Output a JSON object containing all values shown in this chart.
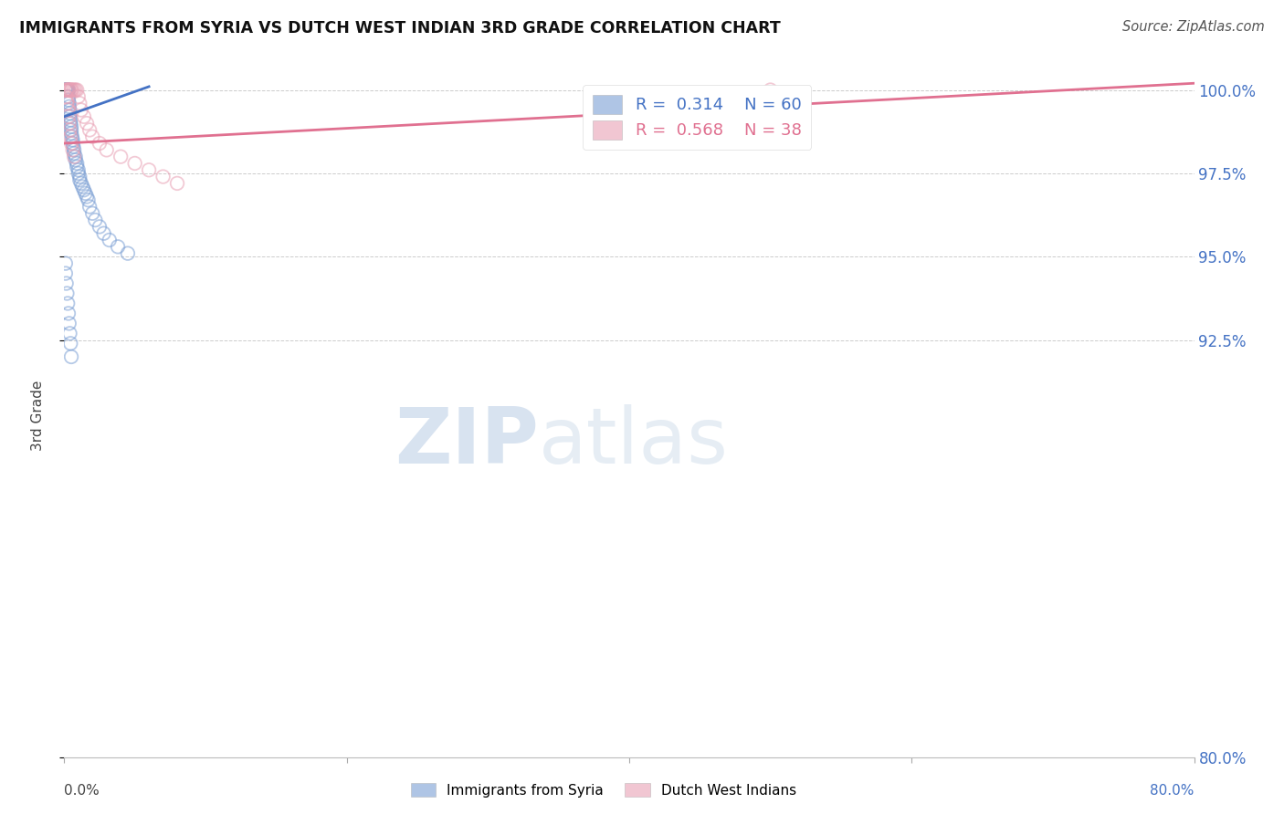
{
  "title": "IMMIGRANTS FROM SYRIA VS DUTCH WEST INDIAN 3RD GRADE CORRELATION CHART",
  "source": "Source: ZipAtlas.com",
  "ylabel": "3rd Grade",
  "ylabel_values": [
    80.0,
    92.5,
    95.0,
    97.5,
    100.0
  ],
  "xlim": [
    0.0,
    80.0
  ],
  "ylim": [
    80.0,
    100.5
  ],
  "legend_blue_R": "0.314",
  "legend_blue_N": "60",
  "legend_pink_R": "0.568",
  "legend_pink_N": "38",
  "blue_color": "#7B9FD4",
  "pink_color": "#E8A0B4",
  "blue_line_color": "#4472C4",
  "pink_line_color": "#E07090",
  "watermark_zip": "ZIP",
  "watermark_atlas": "atlas",
  "blue_scatter_x": [
    0.1,
    0.1,
    0.15,
    0.15,
    0.2,
    0.2,
    0.2,
    0.25,
    0.25,
    0.3,
    0.3,
    0.3,
    0.35,
    0.35,
    0.4,
    0.4,
    0.4,
    0.45,
    0.45,
    0.5,
    0.5,
    0.5,
    0.55,
    0.6,
    0.6,
    0.65,
    0.7,
    0.7,
    0.8,
    0.8,
    0.9,
    0.9,
    1.0,
    1.0,
    1.1,
    1.1,
    1.2,
    1.3,
    1.4,
    1.5,
    1.6,
    1.7,
    1.8,
    2.0,
    2.2,
    2.5,
    2.8,
    3.2,
    3.8,
    4.5,
    0.1,
    0.1,
    0.15,
    0.2,
    0.25,
    0.3,
    0.35,
    0.4,
    0.45,
    0.5
  ],
  "blue_scatter_y": [
    100.0,
    100.0,
    100.0,
    100.0,
    100.0,
    100.0,
    100.0,
    100.0,
    100.0,
    100.0,
    99.8,
    99.7,
    99.6,
    99.5,
    99.4,
    99.3,
    99.2,
    99.1,
    99.0,
    98.9,
    98.8,
    98.7,
    98.6,
    98.5,
    98.4,
    98.3,
    98.2,
    98.1,
    98.0,
    97.9,
    97.8,
    97.7,
    97.6,
    97.5,
    97.4,
    97.3,
    97.2,
    97.1,
    97.0,
    96.9,
    96.8,
    96.7,
    96.5,
    96.3,
    96.1,
    95.9,
    95.7,
    95.5,
    95.3,
    95.1,
    94.8,
    94.5,
    94.2,
    93.9,
    93.6,
    93.3,
    93.0,
    92.7,
    92.4,
    92.0
  ],
  "pink_scatter_x": [
    0.1,
    0.15,
    0.2,
    0.25,
    0.3,
    0.35,
    0.4,
    0.5,
    0.5,
    0.6,
    0.7,
    0.8,
    0.9,
    1.0,
    1.1,
    1.2,
    1.4,
    1.6,
    1.8,
    2.0,
    2.5,
    3.0,
    4.0,
    5.0,
    6.0,
    7.0,
    8.0,
    50.0,
    0.15,
    0.2,
    0.25,
    0.3,
    0.35,
    0.4,
    0.45,
    0.5,
    0.6,
    0.7
  ],
  "pink_scatter_y": [
    100.0,
    100.0,
    100.0,
    100.0,
    100.0,
    100.0,
    100.0,
    100.0,
    100.0,
    100.0,
    100.0,
    100.0,
    100.0,
    99.8,
    99.6,
    99.4,
    99.2,
    99.0,
    98.8,
    98.6,
    98.4,
    98.2,
    98.0,
    97.8,
    97.6,
    97.4,
    97.2,
    100.0,
    99.8,
    99.6,
    99.4,
    99.2,
    99.0,
    98.8,
    98.6,
    98.4,
    98.2,
    98.0
  ],
  "blue_trendline_x": [
    0.0,
    6.0
  ],
  "blue_trendline_y": [
    99.2,
    100.1
  ],
  "pink_trendline_x": [
    0.0,
    80.0
  ],
  "pink_trendline_y": [
    98.4,
    100.2
  ]
}
